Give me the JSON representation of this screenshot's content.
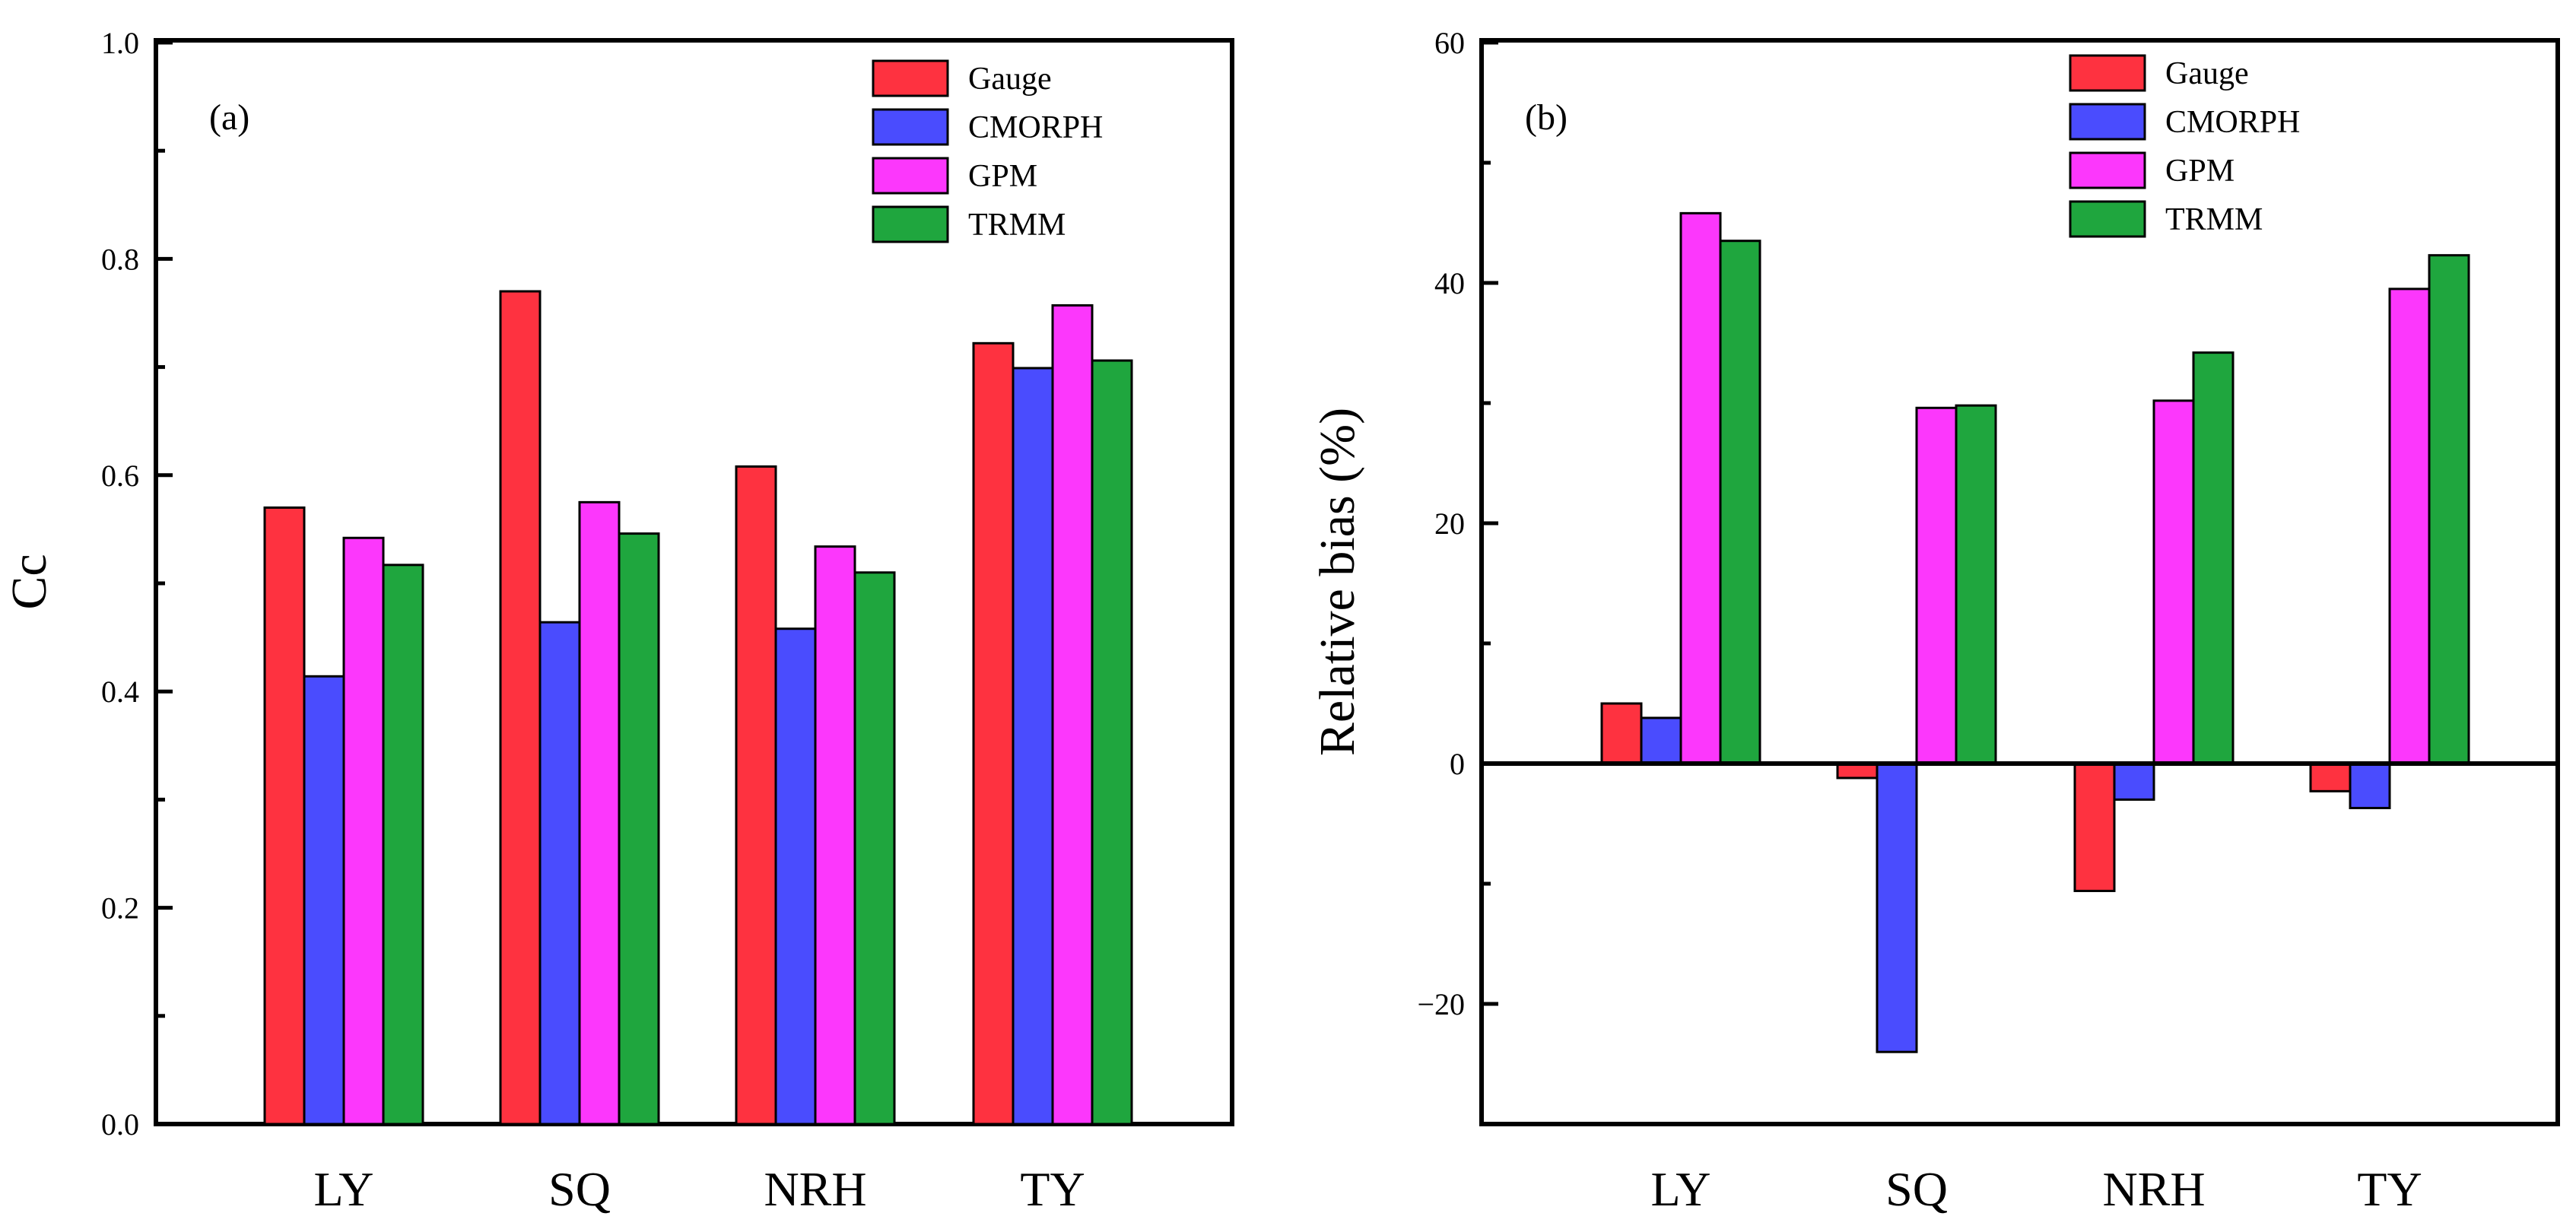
{
  "series_colors": {
    "Gauge": "#fe3240",
    "CMORPH": "#4a4cfe",
    "GPM": "#fc37fc",
    "TRMM": "#1fa63e"
  },
  "chart_data": [
    {
      "type": "bar",
      "panel_label": "(a)",
      "ylabel": "Cc",
      "xlabel": "",
      "categories": [
        "LY",
        "SQ",
        "NRH",
        "TY"
      ],
      "ylim": [
        0.0,
        1.0
      ],
      "yticks": [
        0.0,
        0.2,
        0.4,
        0.6,
        0.8,
        1.0
      ],
      "ytick_labels": [
        "0.0",
        "0.2",
        "0.4",
        "0.6",
        "0.8",
        "1.0"
      ],
      "grid": false,
      "legend_position": "top-right",
      "series": [
        {
          "name": "Gauge",
          "values": [
            0.57,
            0.77,
            0.608,
            0.722
          ]
        },
        {
          "name": "CMORPH",
          "values": [
            0.414,
            0.464,
            0.458,
            0.699
          ]
        },
        {
          "name": "GPM",
          "values": [
            0.542,
            0.575,
            0.534,
            0.757
          ]
        },
        {
          "name": "TRMM",
          "values": [
            0.517,
            0.546,
            0.51,
            0.706
          ]
        }
      ]
    },
    {
      "type": "bar",
      "panel_label": "(b)",
      "ylabel": "Relative bias (%)",
      "xlabel": "",
      "categories": [
        "LY",
        "SQ",
        "NRH",
        "TY"
      ],
      "ylim": [
        -30,
        60
      ],
      "yticks": [
        -20,
        0,
        20,
        40,
        60
      ],
      "ytick_labels": [
        "−20",
        "0",
        "20",
        "40",
        "60"
      ],
      "zero_line": true,
      "grid": false,
      "legend_position": "top-center",
      "series": [
        {
          "name": "Gauge",
          "values": [
            5.0,
            -1.2,
            -10.6,
            -2.3
          ]
        },
        {
          "name": "CMORPH",
          "values": [
            3.8,
            -24.0,
            -3.0,
            -3.7
          ]
        },
        {
          "name": "GPM",
          "values": [
            45.8,
            29.6,
            30.2,
            39.5
          ]
        },
        {
          "name": "TRMM",
          "values": [
            43.5,
            29.8,
            34.2,
            42.3
          ]
        }
      ]
    }
  ]
}
